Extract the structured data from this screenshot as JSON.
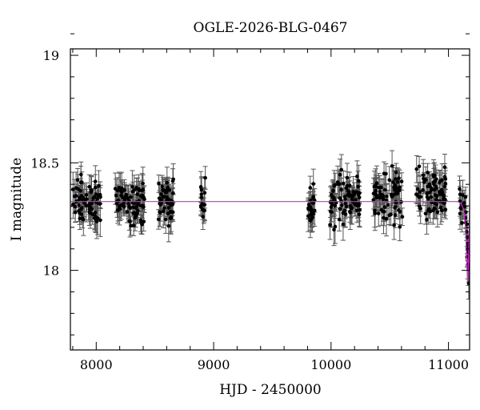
{
  "chart_data": {
    "type": "scatter",
    "title": "OGLE-2026-BLG-0467",
    "xlabel": "HJD - 2450000",
    "ylabel": "I magnitude",
    "xlim": [
      7780,
      11180
    ],
    "ylim": [
      19.03,
      17.63
    ],
    "y_inverted": true,
    "x_ticks": [
      8000,
      9000,
      10000,
      11000
    ],
    "y_ticks": [
      18,
      18.5,
      19
    ],
    "x_tick_labels": [
      "8000",
      "9000",
      "10000",
      "11000"
    ],
    "y_tick_labels": [
      "18",
      "18.5",
      "19"
    ],
    "grid": false,
    "baseline_magnitude": 18.32,
    "model_curve": {
      "color": "#cc33cc",
      "points": [
        {
          "x": 7780,
          "y": 18.32
        },
        {
          "x": 11080,
          "y": 18.32
        },
        {
          "x": 11110,
          "y": 18.31
        },
        {
          "x": 11130,
          "y": 18.28
        },
        {
          "x": 11145,
          "y": 18.2
        },
        {
          "x": 11155,
          "y": 18.05
        },
        {
          "x": 11162,
          "y": 17.95
        },
        {
          "x": 11168,
          "y": 18.0
        },
        {
          "x": 11175,
          "y": 18.15
        },
        {
          "x": 11180,
          "y": 18.3
        }
      ]
    },
    "observing_seasons": [
      {
        "start": 7800,
        "end": 8040,
        "center": 18.32,
        "scatter": 0.05,
        "count": 70
      },
      {
        "start": 8160,
        "end": 8420,
        "center": 18.32,
        "scatter": 0.05,
        "count": 80
      },
      {
        "start": 8530,
        "end": 8660,
        "center": 18.32,
        "scatter": 0.05,
        "count": 55
      },
      {
        "start": 8890,
        "end": 8930,
        "center": 18.33,
        "scatter": 0.05,
        "count": 15
      },
      {
        "start": 9800,
        "end": 9860,
        "center": 18.28,
        "scatter": 0.05,
        "count": 25
      },
      {
        "start": 9990,
        "end": 10250,
        "center": 18.34,
        "scatter": 0.06,
        "count": 80
      },
      {
        "start": 10360,
        "end": 10610,
        "center": 18.34,
        "scatter": 0.06,
        "count": 75
      },
      {
        "start": 10720,
        "end": 10980,
        "center": 18.35,
        "scatter": 0.06,
        "count": 80
      },
      {
        "start": 11090,
        "end": 11140,
        "center": 18.3,
        "scatter": 0.05,
        "count": 12
      },
      {
        "start": 11145,
        "end": 11175,
        "center": 18.05,
        "scatter": 0.05,
        "count": 18
      }
    ],
    "marker_color": "#000000",
    "errorbar_color": "#555555"
  }
}
